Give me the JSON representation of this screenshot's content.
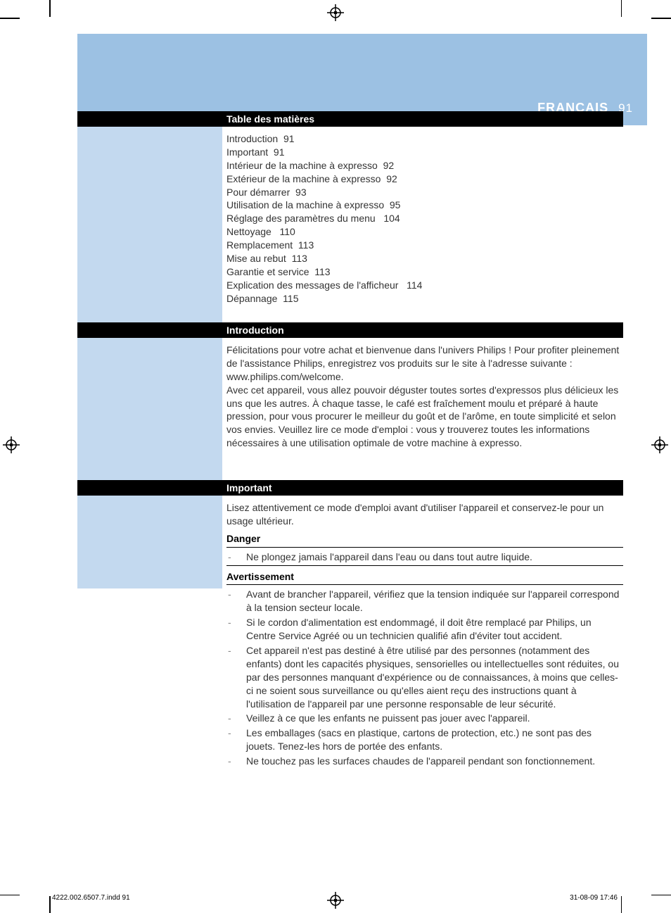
{
  "colors": {
    "header_blue": "#9cc1e3",
    "side_blue": "#c3d9ef",
    "bar_bg": "#000000",
    "bar_text": "#ffffff",
    "body_text": "#333333",
    "dash_color": "#888888"
  },
  "header": {
    "language": "FRANÇAIS",
    "page_number": "91"
  },
  "sections": {
    "toc": {
      "title": "Table des matières",
      "items": [
        {
          "label": "Introduction",
          "page": "91"
        },
        {
          "label": "Important",
          "page": "91"
        },
        {
          "label": "Intérieur de la machine à expresso",
          "page": "92"
        },
        {
          "label": "Extérieur de la machine à expresso",
          "page": "92"
        },
        {
          "label": "Pour démarrer",
          "page": "93"
        },
        {
          "label": "Utilisation de la machine à expresso",
          "page": "95"
        },
        {
          "label": "Réglage des paramètres du menu ",
          "page": "104"
        },
        {
          "label": "Nettoyage ",
          "page": "110"
        },
        {
          "label": "Remplacement",
          "page": "113"
        },
        {
          "label": "Mise au rebut",
          "page": "113"
        },
        {
          "label": "Garantie et service",
          "page": "113"
        },
        {
          "label": "Explication des messages de l'afficheur ",
          "page": "114"
        },
        {
          "label": "Dépannage",
          "page": "115"
        }
      ]
    },
    "intro": {
      "title": "Introduction",
      "body": "Félicitations pour votre achat et bienvenue dans l'univers Philips ! Pour profiter pleinement de l'assistance Philips, enregistrez vos produits sur le site à l'adresse suivante : www.philips.com/welcome.\n Avec cet appareil, vous allez pouvoir déguster toutes sortes d'expressos plus délicieux les uns que les autres. À chaque tasse, le café est fraîchement moulu et préparé à haute pression, pour vous procurer le meilleur du goût et de l'arôme, en toute simplicité et selon vos envies. Veuillez lire ce mode d'emploi : vous y trouverez toutes les informations nécessaires à une utilisation optimale de votre machine à expresso."
    },
    "important": {
      "title": "Important",
      "lead": "Lisez attentivement ce mode d'emploi avant d'utiliser l'appareil et conservez-le pour un usage ultérieur.",
      "danger": {
        "title": "Danger",
        "items": [
          "Ne plongez jamais l'appareil dans l'eau ou dans tout autre liquide."
        ]
      },
      "warning": {
        "title": "Avertissement",
        "items": [
          "Avant de brancher l'appareil, vérifiez que la tension indiquée sur l'appareil correspond à la tension secteur locale.",
          "Si le cordon d'alimentation est endommagé, il doit être remplacé par Philips, un Centre Service Agréé ou un technicien qualifié afin d'éviter tout accident.",
          "Cet appareil n'est pas destiné à être utilisé par des personnes (notamment des enfants) dont les capacités physiques, sensorielles ou intellectuelles sont réduites, ou par des personnes manquant d'expérience ou de connaissances, à moins que celles-ci ne soient sous surveillance ou qu'elles aient reçu des instructions quant à l'utilisation de l'appareil par une personne responsable de leur sécurité.",
          "Veillez à ce que les enfants ne puissent pas jouer avec l'appareil.",
          "Les emballages (sacs en plastique, cartons de protection, etc.) ne sont pas des jouets. Tenez-les hors de portée des enfants.",
          "Ne touchez pas les surfaces chaudes de l'appareil pendant son fonctionnement."
        ]
      }
    }
  },
  "footer": {
    "left": "4222.002.6507.7.indd   91",
    "right": "31-08-09   17:46"
  }
}
